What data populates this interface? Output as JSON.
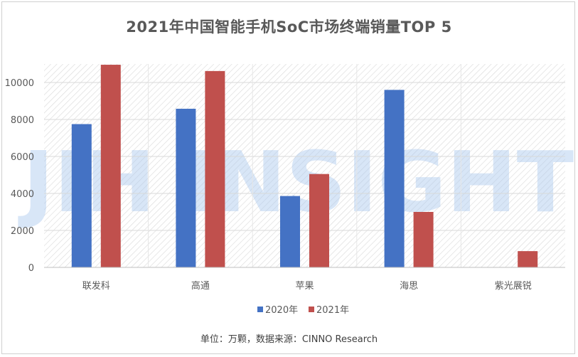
{
  "chart_data": {
    "type": "bar",
    "title": "2021年中国智能手机SoC市场终端销量TOP  5",
    "categories": [
      "联发科",
      "高通",
      "苹果",
      "海思",
      "紫光展锐"
    ],
    "series": [
      {
        "name": "2020年",
        "values": [
          7750,
          8580,
          3860,
          9600,
          null
        ],
        "color": "#4472c4"
      },
      {
        "name": "2021年",
        "values": [
          10960,
          10620,
          5050,
          3000,
          880
        ],
        "color": "#c0504d"
      }
    ],
    "yticks": [
      0,
      2000,
      4000,
      6000,
      8000,
      10000
    ],
    "ylim": [
      0,
      11000
    ],
    "grid": true,
    "legend_position": "bottom",
    "source_note": "单位：万颗，数据来源：CINNO Research",
    "watermark": "JIH INSIGHTS"
  }
}
